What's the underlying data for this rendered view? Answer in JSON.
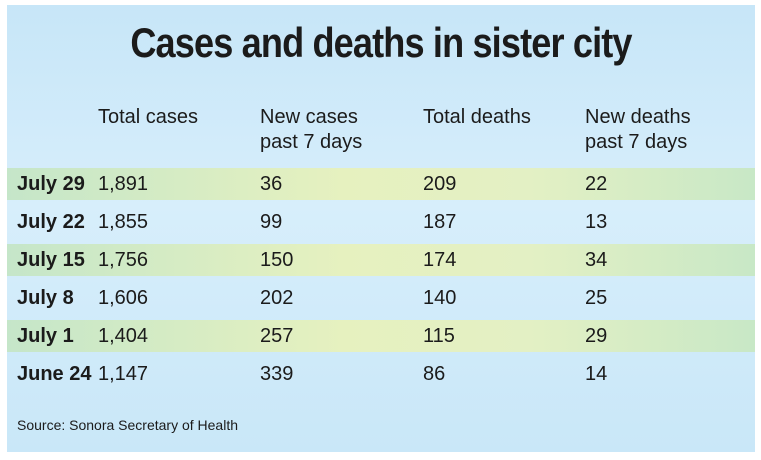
{
  "title": "Cases and deaths in sister city",
  "headers": {
    "total_cases": "Total cases",
    "new_cases_line1": "New cases",
    "new_cases_line2": "past 7 days",
    "total_deaths": "Total deaths",
    "new_deaths_line1": "New deaths",
    "new_deaths_line2": "past 7 days"
  },
  "rows": [
    {
      "date": "July 29",
      "total_cases": "1,891",
      "new_cases": "36",
      "total_deaths": "209",
      "new_deaths": "22"
    },
    {
      "date": "July 22",
      "total_cases": "1,855",
      "new_cases": "99",
      "total_deaths": "187",
      "new_deaths": "13"
    },
    {
      "date": "July 15",
      "total_cases": "1,756",
      "new_cases": "150",
      "total_deaths": "174",
      "new_deaths": "34"
    },
    {
      "date": "July 8",
      "total_cases": "1,606",
      "new_cases": "202",
      "total_deaths": "140",
      "new_deaths": "25"
    },
    {
      "date": "July 1",
      "total_cases": "1,404",
      "new_cases": "257",
      "total_deaths": "115",
      "new_deaths": "29"
    },
    {
      "date": "June 24",
      "total_cases": "1,147",
      "new_cases": "339",
      "total_deaths": "86",
      "new_deaths": "14"
    }
  ],
  "source": "Source:  Sonora Secretary of Health",
  "colors": {
    "background": "#c7e6f8",
    "row_highlight": "#e6f1bf",
    "text": "#1b1b1b"
  }
}
